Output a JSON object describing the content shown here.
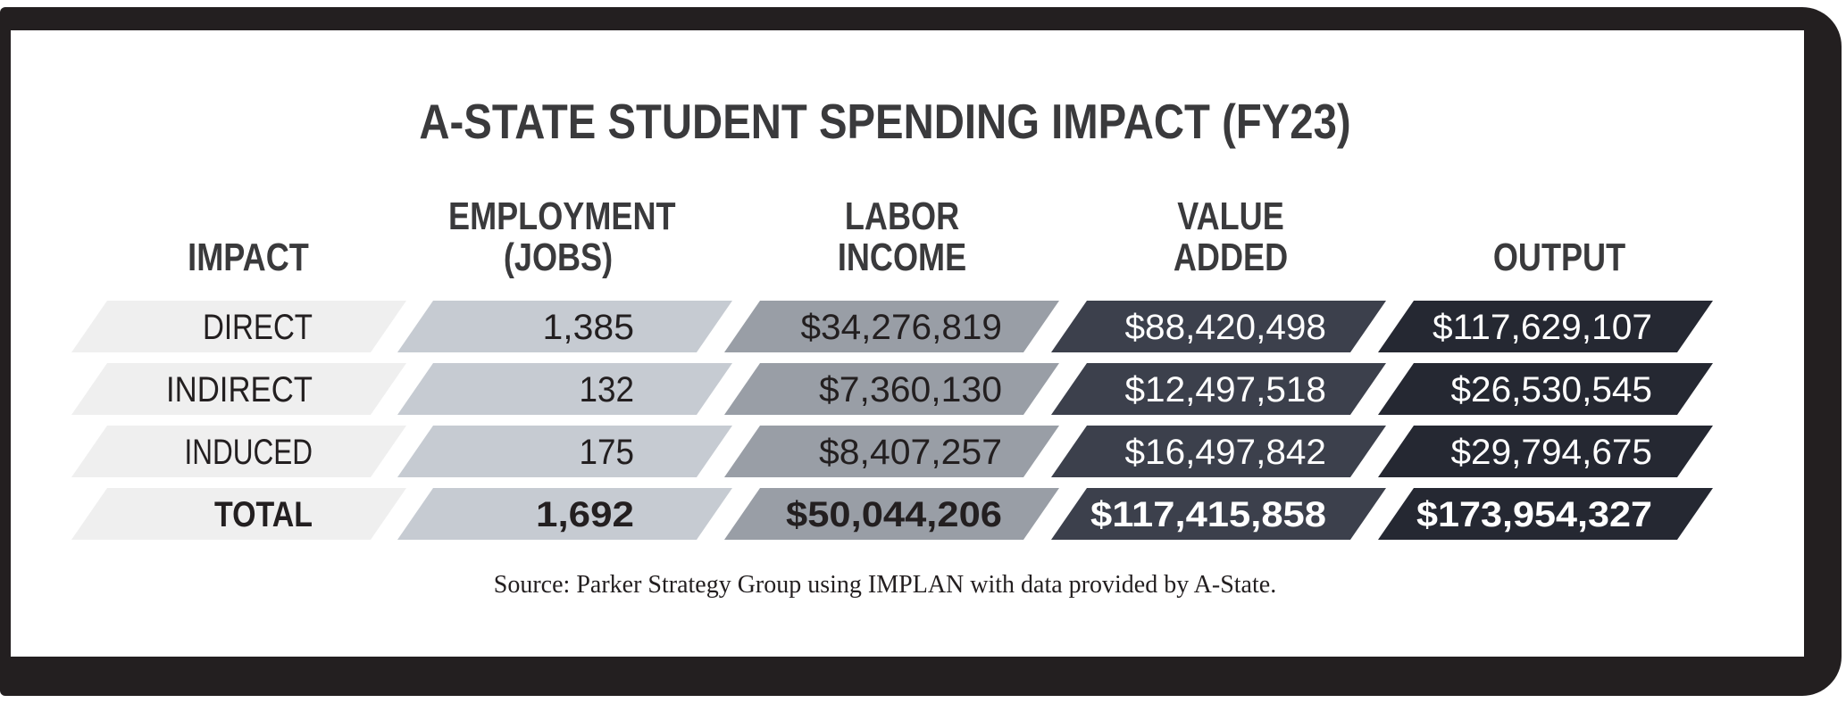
{
  "chart_data": {
    "type": "table",
    "title": "A-STATE STUDENT SPENDING IMPACT (FY23)",
    "columns": [
      {
        "lines": [
          "IMPACT"
        ]
      },
      {
        "lines": [
          "EMPLOYMENT",
          "(JOBS)"
        ]
      },
      {
        "lines": [
          "LABOR",
          "INCOME"
        ]
      },
      {
        "lines": [
          "VALUE",
          "ADDED"
        ]
      },
      {
        "lines": [
          "OUTPUT"
        ]
      }
    ],
    "column_colors": [
      "#efefef",
      "#c6cbd2",
      "#999ea6",
      "#3c404c",
      "#252832"
    ],
    "column_text_colors": [
      "#231f20",
      "#231f20",
      "#231f20",
      "#ffffff",
      "#ffffff"
    ],
    "rows": [
      {
        "label": "DIRECT",
        "values": [
          "1,385",
          "$34,276,819",
          "$88,420,498",
          "$117,629,107"
        ],
        "bold": false
      },
      {
        "label": "INDIRECT",
        "values": [
          "132",
          "$7,360,130",
          "$12,497,518",
          "$26,530,545"
        ],
        "bold": false
      },
      {
        "label": "INDUCED",
        "values": [
          "175",
          "$8,407,257",
          "$16,497,842",
          "$29,794,675"
        ],
        "bold": false
      },
      {
        "label": "TOTAL",
        "values": [
          "1,692",
          "$50,044,206",
          "$117,415,858",
          "$173,954,327"
        ],
        "bold": true
      }
    ],
    "source": "Source: Parker Strategy Group using IMPLAN with data provided by A-State."
  }
}
